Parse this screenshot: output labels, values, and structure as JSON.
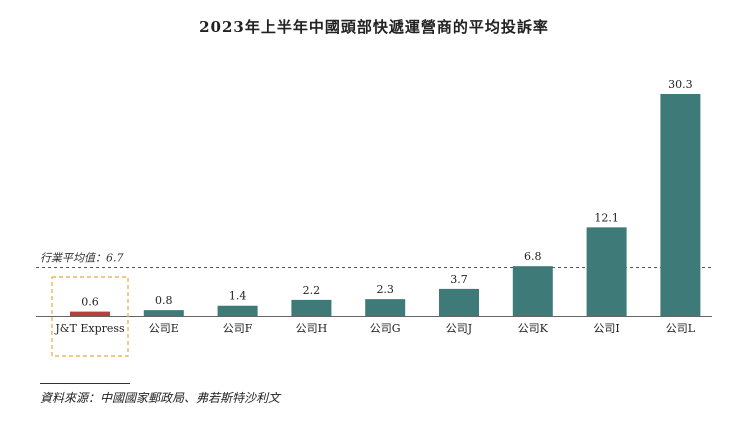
{
  "title": "2023年上半年中國頭部快遞運營商的平均投訴率",
  "source": "資料來源：中國國家郵政局、弗若斯特沙利文",
  "chart_data": {
    "type": "bar",
    "title": "2023年上半年中國頭部快遞運營商的平均投訴率",
    "categories": [
      "J&T Express",
      "公司E",
      "公司F",
      "公司H",
      "公司G",
      "公司J",
      "公司K",
      "公司I",
      "公司L"
    ],
    "values": [
      0.6,
      0.8,
      1.4,
      2.2,
      2.3,
      3.7,
      6.8,
      12.1,
      30.3
    ],
    "value_labels": [
      "0.6",
      "0.8",
      "1.4",
      "2.2",
      "2.3",
      "3.7",
      "6.8",
      "12.1",
      "30.3"
    ],
    "highlight_category": "J&T Express",
    "reference_line": {
      "value": 6.7,
      "label": "行業平均值：6.7"
    },
    "ylim": [
      0,
      30.3
    ],
    "grid": false,
    "legend": "none",
    "colors": {
      "bar": "#3e7b78",
      "highlight_bar": "#b6403e",
      "highlight_box": "#e8a93a",
      "reference_line": "#555555"
    }
  }
}
